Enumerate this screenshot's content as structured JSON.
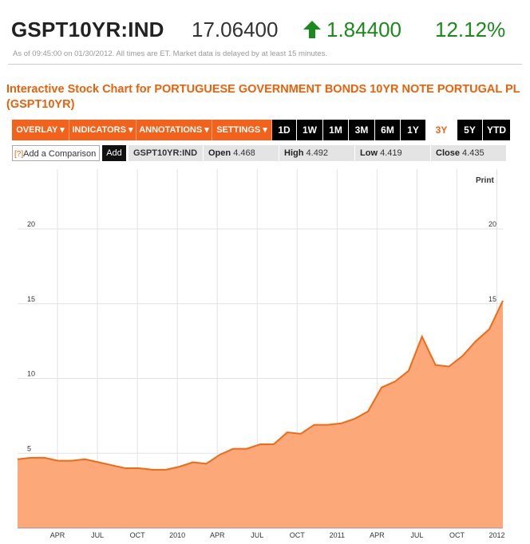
{
  "quote": {
    "symbol": "GSPT10YR:IND",
    "price": "17.06400",
    "change": "1.84400",
    "change_pct": "12.12%",
    "direction_icon": "arrow-up-icon",
    "up_color": "#1a8a1a",
    "as_of": "As of 09:45:00 on 01/30/2012. All times are ET. Market data is delayed by at least 15 minutes."
  },
  "chart_title": "Interactive Stock Chart for PORTUGUESE GOVERNMENT BONDS 10YR NOTE PORTUGAL PL (GSPT10YR)",
  "toolbar": {
    "menus": [
      "OVERLAY ▾",
      "INDICATORS ▾",
      "ANNOTATIONS ▾",
      "SETTINGS ▾"
    ],
    "ranges": [
      "1D",
      "1W",
      "1M",
      "3M",
      "6M",
      "1Y",
      "3Y",
      "5Y",
      "YTD"
    ],
    "active_range": "3Y",
    "accent_color": "#f2621a"
  },
  "comparison": {
    "help": "[?]",
    "input_label": "Add a Comparison",
    "add_label": "Add",
    "symbol": "GSPT10YR:IND",
    "open_label": "Open",
    "open": "4.468",
    "high_label": "High",
    "high": "4.492",
    "low_label": "Low",
    "low": "4.419",
    "close_label": "Close",
    "close": "4.435"
  },
  "print_label": "Print",
  "chart_data": {
    "type": "area",
    "series": [
      {
        "x": [
          "2009-01",
          "2009-02",
          "2009-03",
          "2009-04",
          "2009-05",
          "2009-06",
          "2009-07",
          "2009-08",
          "2009-09",
          "2009-10",
          "2009-11",
          "2009-12",
          "2010-01",
          "2010-02",
          "2010-03",
          "2010-04",
          "2010-05",
          "2010-06",
          "2010-07",
          "2010-08",
          "2010-09",
          "2010-10",
          "2010-11",
          "2010-12",
          "2011-01",
          "2011-02",
          "2011-03",
          "2011-04",
          "2011-05",
          "2011-06",
          "2011-07",
          "2011-08",
          "2011-09",
          "2011-10",
          "2011-11",
          "2011-12",
          "2012-01"
        ],
        "values": [
          4.6,
          4.7,
          4.7,
          4.5,
          4.5,
          4.6,
          4.4,
          4.2,
          4.0,
          4.0,
          3.9,
          3.9,
          4.1,
          4.4,
          4.3,
          4.9,
          5.3,
          5.3,
          5.6,
          5.6,
          6.4,
          6.3,
          6.9,
          6.9,
          7.0,
          7.3,
          7.8,
          9.4,
          9.8,
          10.5,
          12.8,
          10.9,
          10.8,
          11.5,
          12.5,
          13.3,
          15.2
        ]
      }
    ],
    "x_ticks": [
      "APR",
      "JUL",
      "OCT",
      "2010",
      "APR",
      "JUL",
      "OCT",
      "2011",
      "APR",
      "JUL",
      "OCT",
      "2012"
    ],
    "y_ticks": [
      5,
      10,
      15,
      20
    ],
    "ylim": [
      0,
      24
    ],
    "fill_color": "#fca878",
    "line_color": "#f06a14",
    "grid": true
  }
}
